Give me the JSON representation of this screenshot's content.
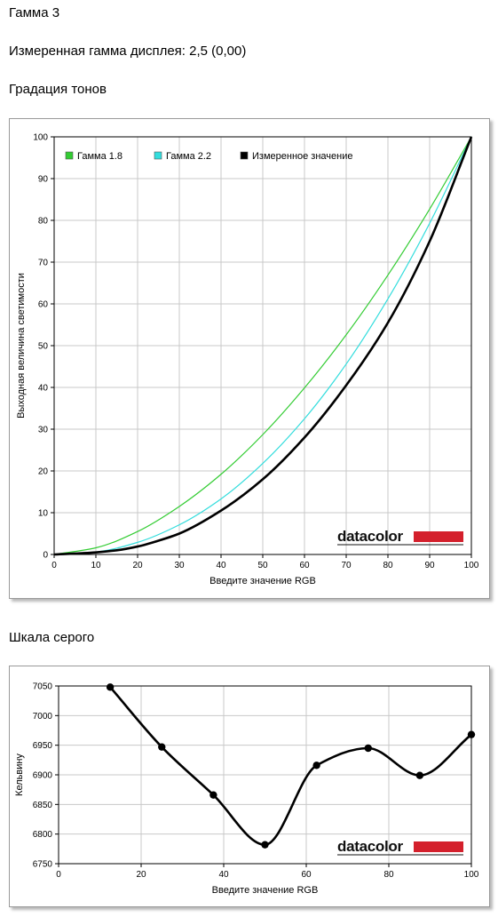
{
  "page": {
    "title": "Гамма 3",
    "measured_gamma": "Измеренная гамма дисплея: 2,5 (0,00)",
    "tone_section": "Градация тонов",
    "gray_section": "Шкала серого"
  },
  "logo": {
    "text": "datacolor",
    "bar_color": "#d4202c"
  },
  "chart_data": [
    {
      "type": "line",
      "xlabel": "Введите значение RGB",
      "ylabel": "Выходная величина светимости",
      "xlim": [
        0,
        100
      ],
      "ylim": [
        0,
        100
      ],
      "x_ticks": [
        0,
        10,
        20,
        30,
        40,
        50,
        60,
        70,
        80,
        90,
        100
      ],
      "y_ticks": [
        0,
        10,
        20,
        30,
        40,
        50,
        60,
        70,
        80,
        90,
        100
      ],
      "grid": true,
      "legend_position": "top-left",
      "series": [
        {
          "name": "Гамма 1.8",
          "color": "#33cc33",
          "x": [
            0,
            10,
            20,
            30,
            40,
            50,
            60,
            70,
            80,
            90,
            100
          ],
          "y": [
            0,
            1.6,
            5.5,
            11.5,
            19.2,
            28.7,
            39.9,
            52.6,
            66.9,
            82.7,
            100
          ]
        },
        {
          "name": "Гамма 2.2",
          "color": "#33dddd",
          "x": [
            0,
            10,
            20,
            30,
            40,
            50,
            60,
            70,
            80,
            90,
            100
          ],
          "y": [
            0,
            0.6,
            2.9,
            7.1,
            13.3,
            21.8,
            32.5,
            45.6,
            61.2,
            79.3,
            100
          ]
        },
        {
          "name": "Измеренное значение",
          "color": "#000000",
          "x": [
            0,
            10,
            15,
            20,
            25,
            30,
            40,
            50,
            60,
            70,
            80,
            90,
            100
          ],
          "y": [
            0,
            0.5,
            1.0,
            1.9,
            3.3,
            5.0,
            10.5,
            18.0,
            28.0,
            40.5,
            55.5,
            75.0,
            100
          ]
        }
      ]
    },
    {
      "type": "line",
      "xlabel": "Введите значение RGB",
      "ylabel": "Кельвину",
      "xlim": [
        0,
        100
      ],
      "ylim": [
        6750,
        7050
      ],
      "x_ticks": [
        0,
        20,
        40,
        60,
        80,
        100
      ],
      "y_ticks": [
        6750,
        6800,
        6850,
        6900,
        6950,
        7000,
        7050
      ],
      "grid": true,
      "series": [
        {
          "color": "#000000",
          "x": [
            12.5,
            25,
            37.5,
            50,
            62.5,
            75,
            87.5,
            100
          ],
          "y": [
            7048,
            6947,
            6866,
            6782,
            6916,
            6945,
            6899,
            6968
          ]
        }
      ]
    }
  ]
}
